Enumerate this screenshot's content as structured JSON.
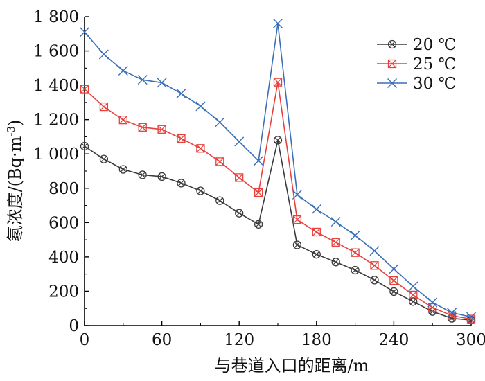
{
  "chart_data": {
    "type": "line",
    "title": "",
    "xlabel": "与巷道入口的距离/m",
    "ylabel": "氡浓度/(Bq·m",
    "ylabel_sup": "-3",
    "ylabel_close": ")",
    "xlim": [
      0,
      300
    ],
    "ylim": [
      0,
      1800
    ],
    "xticks": [
      0,
      60,
      120,
      180,
      240,
      300
    ],
    "xtick_labels": [
      "0",
      "60",
      "120",
      "180",
      "240",
      "300"
    ],
    "yticks": [
      0,
      200,
      400,
      600,
      800,
      1000,
      1200,
      1400,
      1600,
      1800
    ],
    "ytick_labels": [
      "0",
      "200",
      "400",
      "600",
      "800",
      "1 000",
      "1 200",
      "1 400",
      "1 600",
      "1 800"
    ],
    "grid": false,
    "legend_position": "top-right",
    "x": [
      0,
      15,
      30,
      45,
      60,
      75,
      90,
      105,
      120,
      135,
      150,
      165,
      180,
      195,
      210,
      225,
      240,
      255,
      270,
      285,
      300
    ],
    "series": [
      {
        "name": "20 ℃",
        "color": "#3a3a3a",
        "marker": "circle-x",
        "values": [
          1045,
          970,
          910,
          878,
          868,
          830,
          785,
          728,
          655,
          590,
          1080,
          470,
          415,
          370,
          323,
          265,
          198,
          140,
          82,
          42,
          32
        ]
      },
      {
        "name": "25 ℃",
        "color": "#e8413c",
        "marker": "square-x",
        "values": [
          1378,
          1275,
          1198,
          1155,
          1143,
          1090,
          1032,
          955,
          862,
          775,
          1418,
          617,
          545,
          485,
          425,
          350,
          262,
          178,
          105,
          58,
          38
        ]
      },
      {
        "name": "30 ℃",
        "color": "#3a6fb8",
        "marker": "x",
        "values": [
          1710,
          1580,
          1485,
          1432,
          1415,
          1352,
          1278,
          1185,
          1072,
          960,
          1760,
          763,
          678,
          605,
          525,
          435,
          330,
          228,
          135,
          75,
          50
        ]
      }
    ]
  }
}
